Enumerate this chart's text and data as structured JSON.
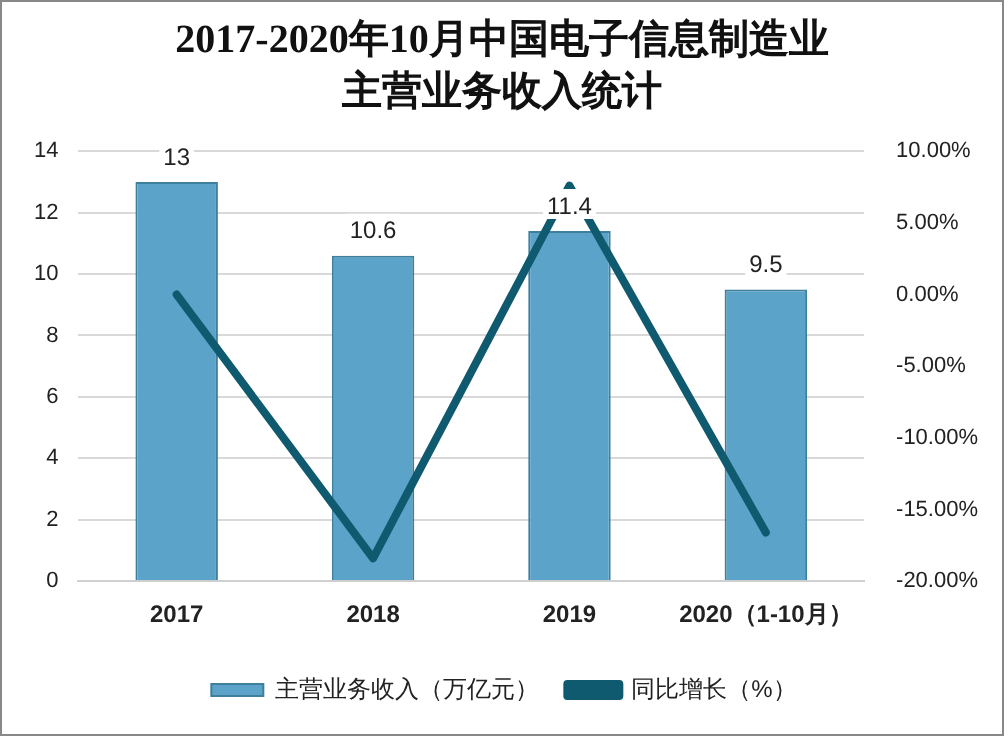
{
  "chart_data": {
    "type": "bar",
    "title": "2017-2020年10月中国电子信息制造业主营业务收入统计",
    "categories": [
      "2017",
      "2018",
      "2019",
      "2020（1-10月）"
    ],
    "series": [
      {
        "name": "主营业务收入（万亿元）",
        "color": "#5ba3c9",
        "values": [
          13,
          10.6,
          11.4,
          9.5
        ],
        "value_labels": [
          "13",
          "10.6",
          "11.4",
          "9.5"
        ]
      },
      {
        "name": "同比增长（%）",
        "type": "line",
        "axis": "y2",
        "color": "#0f5a6e",
        "values": [
          0.0,
          -18.4,
          7.6,
          -16.6
        ]
      }
    ],
    "ylim": [
      0,
      14
    ],
    "yticks": [
      0,
      2,
      4,
      6,
      8,
      10,
      12,
      14
    ],
    "y2lim": [
      -20,
      10
    ],
    "y2ticks": [
      {
        "value": -20,
        "label": "-20.00%"
      },
      {
        "value": -15,
        "label": "-15.00%"
      },
      {
        "value": -10,
        "label": "-10.00%"
      },
      {
        "value": -5,
        "label": "-5.00%"
      },
      {
        "value": 0,
        "label": "0.00%"
      },
      {
        "value": 5,
        "label": "5.00%"
      },
      {
        "value": 10,
        "label": "10.00%"
      }
    ],
    "grid": "y",
    "legend": "bottom",
    "marker": "none",
    "line_style": "solid"
  }
}
